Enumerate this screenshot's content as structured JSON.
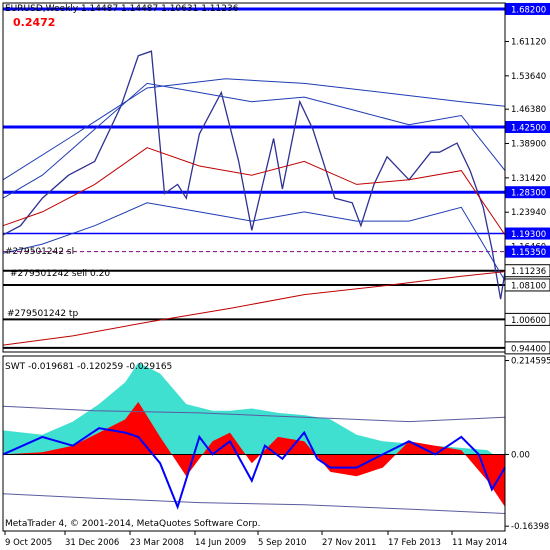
{
  "header": {
    "title": "EURUSD,Weekly  1.14487 1.14487 1.10631 1.11236",
    "big_value": "0.2472",
    "copyright": "MetaTrader 4, © 2001-2014, MetaQuotes Software Corp.",
    "indicator_label": "SWT -0.019681 -0.120259 -0.029165"
  },
  "order_labels": {
    "sl": "#279501242 sl",
    "sell": "#279501242 sell 0.20",
    "tp": "#279501242 tp"
  },
  "colors": {
    "price_line": "#2e3192",
    "level_line": "#0000ff",
    "ma_red": "#c00000",
    "band_blue": "#1e3cb4",
    "fill_cyan": "#40e0d0",
    "fill_red": "#ff0000",
    "price_tag": "#0000ff",
    "price_tag_text": "#ffffff"
  },
  "chart_data": [
    {
      "type": "line",
      "name": "price",
      "y_ticks": [
        "1.61120",
        "1.53640",
        "1.46380",
        "1.38900",
        "1.31420",
        "1.23940",
        "1.16460",
        "1.08100"
      ],
      "ylim": [
        0.935,
        1.695
      ],
      "levels": [
        {
          "value": 1.682,
          "label": "1.68200",
          "style": "thick"
        },
        {
          "value": 1.425,
          "label": "1.42500",
          "style": "thick"
        },
        {
          "value": 1.283,
          "label": "1.28300",
          "style": "thick"
        },
        {
          "value": 1.193,
          "label": "1.19300",
          "style": "thin"
        },
        {
          "value": 1.1535,
          "label": "1.15350",
          "style": "dashed"
        },
        {
          "value": 1.112,
          "label": "1.11236",
          "style": "black"
        },
        {
          "value": 1.081,
          "label": "1.08100",
          "style": "black"
        },
        {
          "value": 1.006,
          "label": "1.00600",
          "style": "black"
        },
        {
          "value": 0.944,
          "label": "0.94400",
          "style": "black"
        }
      ],
      "x_ticks": [
        "9 Oct 2005",
        "31 Dec 2006",
        "23 Mar 2008",
        "14 Jun 2009",
        "5 Sep 2010",
        "27 Nov 2011",
        "17 Feb 2013",
        "11 May 2014"
      ],
      "x_range": [
        "2005-09",
        "2015-04"
      ],
      "series": [
        {
          "x": [
            "2005-09",
            "2006-01",
            "2006-06",
            "2006-12",
            "2007-06",
            "2007-12",
            "2008-04",
            "2008-07",
            "2008-10",
            "2009-01",
            "2009-03",
            "2009-06",
            "2009-11",
            "2010-03",
            "2010-06",
            "2010-11",
            "2011-01",
            "2011-05",
            "2011-08",
            "2011-11",
            "2012-01",
            "2012-05",
            "2012-07",
            "2012-10",
            "2013-01",
            "2013-06",
            "2013-11",
            "2014-01",
            "2014-05",
            "2014-08",
            "2014-11",
            "2015-01",
            "2015-03",
            "2015-04"
          ],
          "y": [
            1.19,
            1.21,
            1.27,
            1.32,
            1.35,
            1.47,
            1.58,
            1.59,
            1.28,
            1.3,
            1.27,
            1.41,
            1.5,
            1.35,
            1.2,
            1.4,
            1.29,
            1.48,
            1.42,
            1.33,
            1.27,
            1.26,
            1.21,
            1.3,
            1.36,
            1.31,
            1.37,
            1.37,
            1.39,
            1.33,
            1.25,
            1.16,
            1.05,
            1.11
          ]
        },
        {
          "x": [
            "2005-09",
            "2007-01",
            "2008-06",
            "2010-01",
            "2011-06",
            "2013-01",
            "2014-06",
            "2015-04"
          ],
          "y": [
            0.95,
            0.97,
            1.0,
            1.03,
            1.06,
            1.08,
            1.1,
            1.11
          ]
        },
        {
          "x": [
            "2005-09",
            "2006-06",
            "2007-06",
            "2008-06",
            "2009-06",
            "2010-06",
            "2011-06",
            "2012-06",
            "2013-06",
            "2014-06",
            "2015-04"
          ],
          "y": [
            1.21,
            1.24,
            1.3,
            1.38,
            1.34,
            1.32,
            1.35,
            1.3,
            1.31,
            1.33,
            1.19
          ]
        },
        {
          "x": [
            "2005-09",
            "2006-06",
            "2007-06",
            "2008-06",
            "2009-06",
            "2010-06",
            "2011-06",
            "2012-06",
            "2013-06",
            "2014-06",
            "2015-04"
          ],
          "y": [
            1.27,
            1.32,
            1.42,
            1.52,
            1.5,
            1.48,
            1.49,
            1.46,
            1.43,
            1.45,
            1.33
          ]
        },
        {
          "x": [
            "2005-09",
            "2006-06",
            "2007-06",
            "2008-06",
            "2009-06",
            "2010-06",
            "2011-06",
            "2012-06",
            "2013-06",
            "2014-06",
            "2015-04"
          ],
          "y": [
            1.15,
            1.17,
            1.21,
            1.26,
            1.24,
            1.22,
            1.24,
            1.22,
            1.22,
            1.25,
            1.09
          ]
        },
        {
          "x": [
            "2005-09",
            "2006-12",
            "2008-06",
            "2009-12",
            "2011-06",
            "2012-12",
            "2014-06",
            "2015-04"
          ],
          "y": [
            1.31,
            1.4,
            1.51,
            1.53,
            1.52,
            1.5,
            1.48,
            1.47
          ]
        }
      ]
    },
    {
      "type": "area",
      "name": "SWT",
      "y_ticks": [
        "0.214595",
        "0.00",
        "-0.163981"
      ],
      "ylim": [
        -0.175,
        0.225
      ],
      "series": [
        {
          "x": [
            "2005-09",
            "2006-06",
            "2007-01",
            "2007-07",
            "2008-01",
            "2008-04",
            "2008-09",
            "2009-03",
            "2009-09",
            "2010-01",
            "2010-06",
            "2010-12",
            "2011-06",
            "2011-12",
            "2012-06",
            "2012-12",
            "2013-06",
            "2013-12",
            "2014-06",
            "2014-12",
            "2015-04"
          ],
          "y": [
            0.055,
            0.045,
            0.075,
            0.115,
            0.165,
            0.21,
            0.185,
            0.115,
            0.1,
            0.1,
            0.105,
            0.095,
            0.09,
            0.08,
            0.045,
            0.03,
            0.025,
            0.02,
            0.015,
            0.01,
            -0.02
          ]
        },
        {
          "x": [
            "2005-09",
            "2006-06",
            "2007-01",
            "2007-07",
            "2008-01",
            "2008-04",
            "2008-09",
            "2009-03",
            "2009-09",
            "2010-01",
            "2010-06",
            "2010-12",
            "2011-06",
            "2011-12",
            "2012-06",
            "2012-12",
            "2013-06",
            "2013-12",
            "2014-06",
            "2014-12",
            "2015-04"
          ],
          "y": [
            0.0,
            0.005,
            0.02,
            0.05,
            0.08,
            0.12,
            0.04,
            -0.05,
            0.03,
            0.05,
            -0.02,
            0.04,
            0.03,
            -0.04,
            -0.05,
            -0.03,
            0.03,
            0.02,
            0.01,
            -0.06,
            -0.12
          ]
        },
        {
          "x": [
            "2005-09",
            "2006-06",
            "2007-01",
            "2007-07",
            "2008-01",
            "2008-04",
            "2008-09",
            "2009-01",
            "2009-06",
            "2009-09",
            "2010-01",
            "2010-06",
            "2010-09",
            "2011-01",
            "2011-06",
            "2011-09",
            "2011-12",
            "2012-06",
            "2012-12",
            "2013-06",
            "2013-12",
            "2014-06",
            "2014-10",
            "2015-01",
            "2015-04"
          ],
          "y": [
            0.0,
            0.04,
            0.02,
            0.06,
            0.05,
            0.04,
            -0.02,
            -0.12,
            0.04,
            0.0,
            0.03,
            -0.06,
            0.02,
            -0.01,
            0.05,
            -0.01,
            -0.03,
            -0.03,
            0.0,
            0.03,
            0.0,
            0.04,
            0.0,
            -0.08,
            -0.03
          ]
        },
        {
          "x": [
            "2005-09",
            "2007-06",
            "2009-06",
            "2011-06",
            "2013-06",
            "2015-04"
          ],
          "y": [
            0.11,
            0.1,
            0.095,
            0.085,
            0.075,
            0.085
          ]
        },
        {
          "x": [
            "2005-09",
            "2007-06",
            "2009-06",
            "2011-06",
            "2013-06",
            "2015-04"
          ],
          "y": [
            -0.09,
            -0.1,
            -0.11,
            -0.115,
            -0.125,
            -0.135
          ]
        }
      ]
    }
  ]
}
